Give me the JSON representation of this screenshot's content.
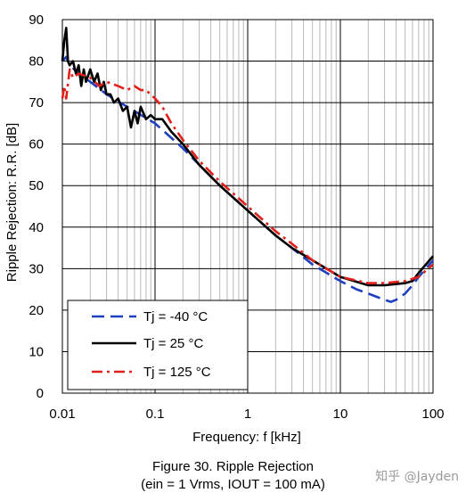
{
  "caption": {
    "line1": "Figure 30. Ripple Rejection",
    "line2": "(ein = 1 Vrms, IOUT = 100 mA)"
  },
  "watermark": "知乎 @Jayden",
  "chart_data": {
    "type": "line",
    "title": "",
    "xlabel": "Frequency: f [kHz]",
    "ylabel": "Ripple Rejection: R.R. [dB]",
    "x_scale": "log",
    "xlim": [
      0.01,
      100
    ],
    "ylim": [
      0,
      90
    ],
    "x_ticks": [
      0.01,
      0.1,
      1,
      10,
      100
    ],
    "x_tick_labels": [
      "0.01",
      "0.1",
      "1",
      "10",
      "100"
    ],
    "y_ticks": [
      0,
      10,
      20,
      30,
      40,
      50,
      60,
      70,
      80,
      90
    ],
    "y_tick_labels": [
      "0",
      "10",
      "20",
      "30",
      "40",
      "50",
      "60",
      "70",
      "80",
      "90"
    ],
    "grid": true,
    "legend_position": "bottom-left",
    "series": [
      {
        "name": "Tj = -40 °C",
        "color": "#1f3fbf",
        "style": "dashed",
        "x": [
          0.01,
          0.011,
          0.012,
          0.015,
          0.02,
          0.03,
          0.05,
          0.1,
          0.2,
          0.3,
          0.5,
          1,
          2,
          3,
          5,
          10,
          15,
          20,
          30,
          35,
          40,
          50,
          60,
          70,
          100
        ],
        "y": [
          80,
          81,
          79,
          77,
          75,
          72,
          69,
          65,
          59,
          55,
          50,
          44,
          38,
          35,
          31,
          27,
          25,
          24,
          22.5,
          22,
          22.5,
          24,
          26,
          28,
          32
        ]
      },
      {
        "name": "Tj = 25 °C",
        "color": "#000000",
        "style": "solid",
        "x": [
          0.01,
          0.0105,
          0.011,
          0.0115,
          0.012,
          0.013,
          0.014,
          0.015,
          0.016,
          0.017,
          0.018,
          0.02,
          0.022,
          0.024,
          0.026,
          0.028,
          0.03,
          0.033,
          0.036,
          0.04,
          0.045,
          0.05,
          0.055,
          0.06,
          0.065,
          0.07,
          0.08,
          0.09,
          0.1,
          0.12,
          0.15,
          0.2,
          0.3,
          0.5,
          1,
          2,
          3,
          5,
          10,
          20,
          30,
          50,
          60,
          70,
          100
        ],
        "y": [
          80,
          85,
          88,
          80,
          79,
          80,
          77,
          79,
          74,
          78,
          75,
          78,
          75,
          77,
          73,
          75,
          72,
          72,
          70,
          71,
          68,
          69,
          64,
          68,
          65,
          69,
          66,
          67,
          66,
          66,
          63,
          60,
          55,
          50,
          44,
          38,
          35,
          32,
          28,
          26,
          26,
          26.5,
          27,
          29,
          33
        ]
      },
      {
        "name": "Tj = 125 °C",
        "color": "#e0201a",
        "style": "dashdot",
        "x": [
          0.01,
          0.0105,
          0.011,
          0.012,
          0.013,
          0.015,
          0.02,
          0.025,
          0.03,
          0.04,
          0.05,
          0.06,
          0.07,
          0.08,
          0.1,
          0.12,
          0.15,
          0.2,
          0.3,
          0.5,
          1,
          2,
          3,
          5,
          10,
          20,
          30,
          50,
          70,
          100
        ],
        "y": [
          71,
          74,
          71,
          78,
          76,
          77,
          76,
          74,
          75,
          74,
          73,
          74,
          73,
          73,
          71,
          69,
          65,
          61,
          56,
          51,
          45,
          39,
          36,
          32,
          28,
          26.5,
          26.5,
          27,
          28,
          31
        ]
      }
    ]
  }
}
